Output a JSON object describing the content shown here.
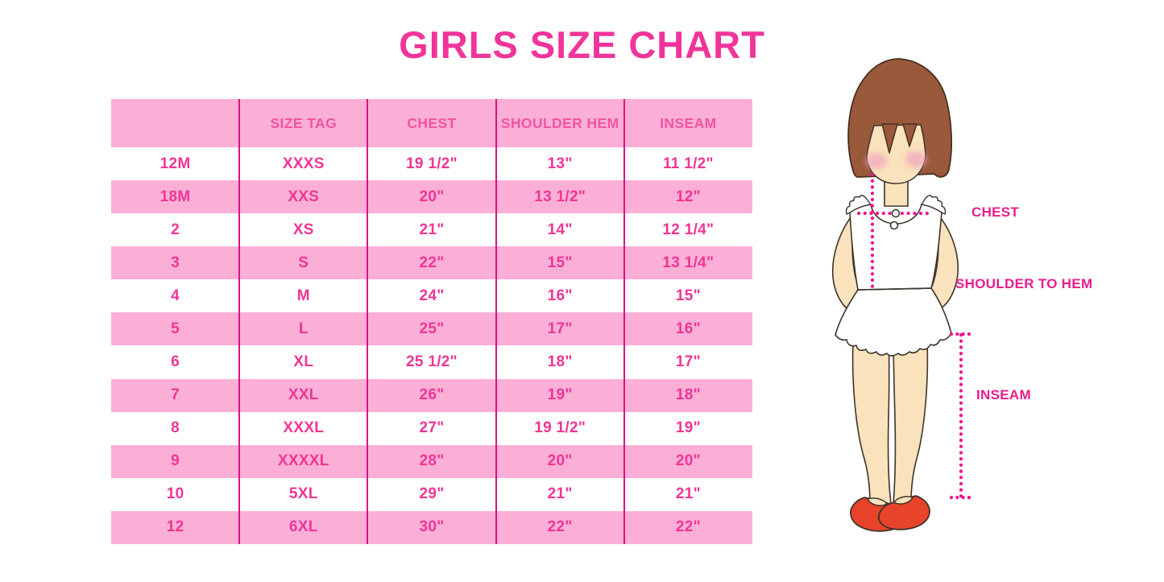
{
  "title": "GIRLS SIZE CHART",
  "chart_data": {
    "type": "table",
    "title": "GIRLS SIZE CHART",
    "columns": [
      "",
      "SIZE TAG",
      "CHEST",
      "SHOULDER HEM",
      "INSEAM"
    ],
    "rows": [
      [
        "12M",
        "XXXS",
        "19 1/2\"",
        "13\"",
        "11 1/2\""
      ],
      [
        "18M",
        "XXS",
        "20\"",
        "13 1/2\"",
        "12\""
      ],
      [
        "2",
        "XS",
        "21\"",
        "14\"",
        "12 1/4\""
      ],
      [
        "3",
        "S",
        "22\"",
        "15\"",
        "13 1/4\""
      ],
      [
        "4",
        "M",
        "24\"",
        "16\"",
        "15\""
      ],
      [
        "5",
        "L",
        "25\"",
        "17\"",
        "16\""
      ],
      [
        "6",
        "XL",
        "25 1/2\"",
        "18\"",
        "17\""
      ],
      [
        "7",
        "XXL",
        "26\"",
        "19\"",
        "18\""
      ],
      [
        "8",
        "XXXL",
        "27\"",
        "19 1/2\"",
        "19\""
      ],
      [
        "9",
        "XXXXL",
        "28\"",
        "20\"",
        "20\""
      ],
      [
        "10",
        "5XL",
        "29\"",
        "21\"",
        "21\""
      ],
      [
        "12",
        "6XL",
        "30\"",
        "22\"",
        "22\""
      ]
    ],
    "row_striping": [
      "white",
      "pink"
    ],
    "legend_position": "none",
    "grid": "vertical-dividers-only"
  },
  "figure": {
    "labels": {
      "chest": "CHEST",
      "shoulder_to_hem": "SHOULDER TO HEM",
      "inseam": "INSEAM"
    }
  },
  "colors": {
    "title_pink": "#F0349A",
    "band_pink": "#FBAFD7",
    "cell_text_pink": "#F03595",
    "header_text_pink": "#F2539F",
    "divider_magenta": "#E0107F",
    "label_magenta": "#EA1D8D",
    "dotted_line_magenta": "#ED1690",
    "skin": "#FAE2BC",
    "hair_brown": "#9A593B",
    "blush_pink": "#F2ABBE",
    "shoe_red": "#E8432B",
    "outline": "#3E342B",
    "background": "#FFFFFF"
  }
}
